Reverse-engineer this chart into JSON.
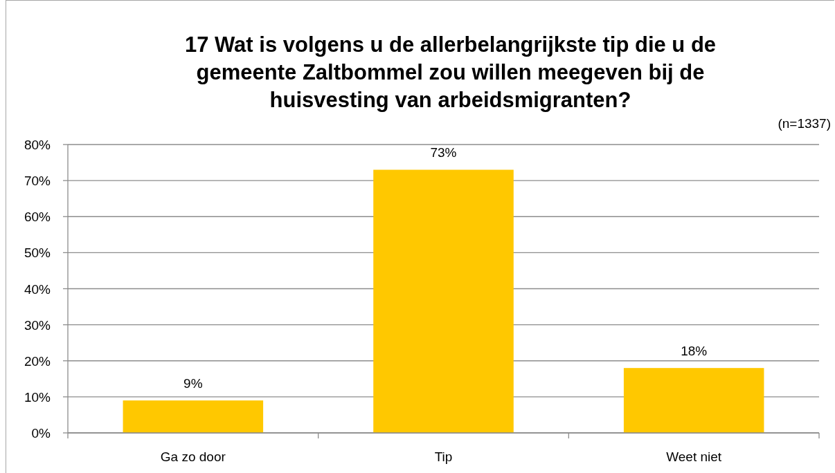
{
  "chart_data": {
    "type": "bar",
    "title": "17 Wat is volgens u de allerbelangrijkste tip die u de gemeente Zaltbommel zou willen meegeven bij de huisvesting van arbeidsmigranten?",
    "annotations": [
      "(n=1337)"
    ],
    "categories": [
      "Ga zo door",
      "Tip",
      "Weet niet"
    ],
    "values": [
      9,
      73,
      18
    ],
    "value_labels": [
      "9%",
      "73%",
      "18%"
    ],
    "color": "#ffc800",
    "ylim": [
      0,
      80
    ],
    "yticks": [
      {
        "value": 0,
        "label": "0%"
      },
      {
        "value": 10,
        "label": "10%"
      },
      {
        "value": 20,
        "label": "20%"
      },
      {
        "value": 30,
        "label": "30%"
      },
      {
        "value": 40,
        "label": "40%"
      },
      {
        "value": 50,
        "label": "50%"
      },
      {
        "value": 60,
        "label": "60%"
      },
      {
        "value": 70,
        "label": "70%"
      },
      {
        "value": 80,
        "label": "80%"
      }
    ],
    "grid": "y"
  }
}
